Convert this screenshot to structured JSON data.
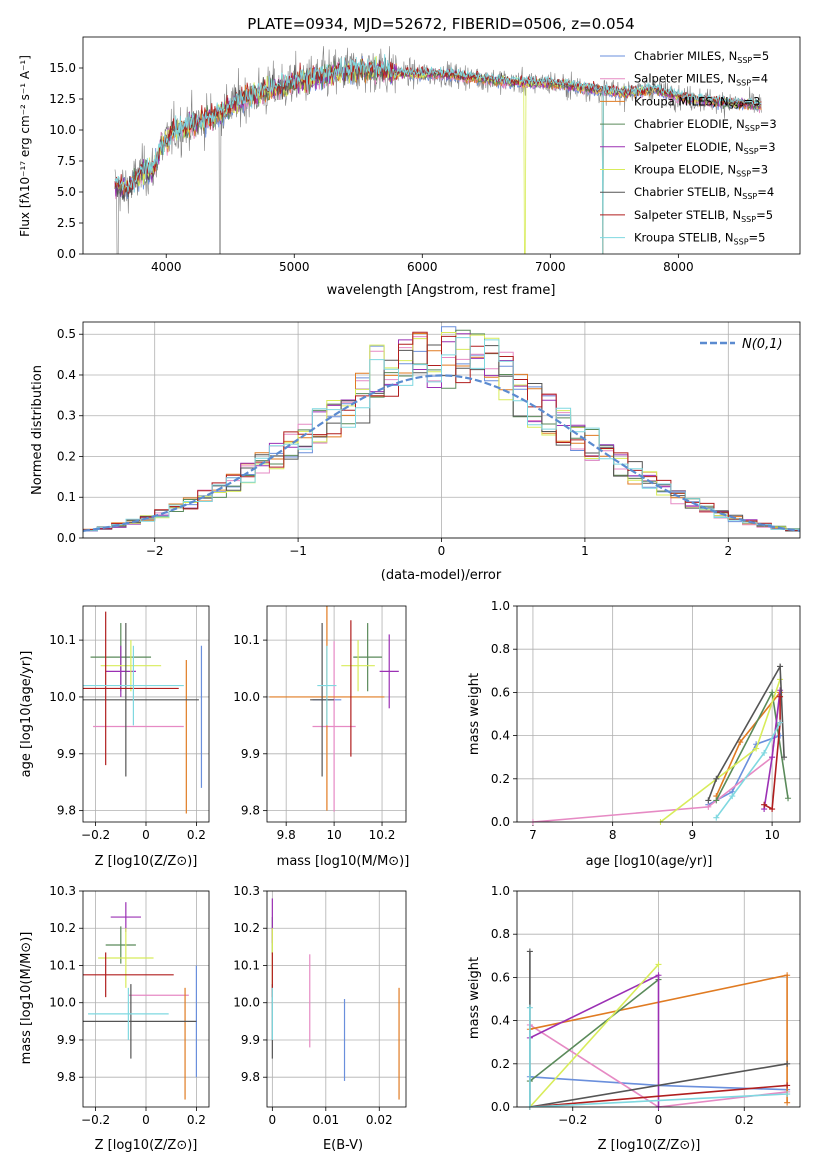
{
  "colors": {
    "Chabrier MILES": "#6a8fdc",
    "Salpeter MILES": "#e68ac4",
    "Kroupa MILES": "#e07b22",
    "Chabrier ELODIE": "#5a8a5a",
    "Salpeter ELODIE": "#9b30b4",
    "Kroupa ELODIE": "#d8ec5a",
    "Chabrier STELIB": "#555555",
    "Salpeter STELIB": "#b01e1e",
    "Kroupa STELIB": "#7fd8e0"
  },
  "chart_data": [
    {
      "id": "spectrum",
      "type": "line",
      "title": "PLATE=0934, MJD=52672, FIBERID=0506, z=0.054",
      "xlabel": "wavelength [Angstrom, rest frame]",
      "ylabel": "Flux [fλ10⁻¹⁷ erg cm⁻² s⁻¹ A⁻¹]",
      "xlim": [
        3350,
        8950
      ],
      "ylim": [
        0,
        17.5
      ],
      "xticks": [
        4000,
        5000,
        6000,
        7000,
        8000
      ],
      "yticks": [
        0.0,
        2.5,
        5.0,
        7.5,
        10.0,
        12.5,
        15.0
      ],
      "data_color": "#808080",
      "data_x_range": [
        3600,
        8650
      ],
      "continuum": [
        [
          3600,
          5.5
        ],
        [
          3700,
          5.2
        ],
        [
          3800,
          6.5
        ],
        [
          3900,
          6.8
        ],
        [
          3950,
          8.5
        ],
        [
          4050,
          9.8
        ],
        [
          4200,
          10.5
        ],
        [
          4400,
          11.2
        ],
        [
          4600,
          12.5
        ],
        [
          4800,
          13.2
        ],
        [
          5000,
          13.8
        ],
        [
          5200,
          14.3
        ],
        [
          5400,
          14.8
        ],
        [
          5600,
          14.9
        ],
        [
          5800,
          14.6
        ],
        [
          6000,
          14.5
        ],
        [
          6200,
          14.5
        ],
        [
          6400,
          14.2
        ],
        [
          6600,
          14.0
        ],
        [
          6800,
          13.8
        ],
        [
          7000,
          13.8
        ],
        [
          7200,
          13.5
        ],
        [
          7400,
          13.2
        ],
        [
          7600,
          13.0
        ],
        [
          7800,
          13.3
        ],
        [
          8000,
          12.7
        ],
        [
          8200,
          12.4
        ],
        [
          8400,
          12.2
        ],
        [
          8650,
          12.0
        ]
      ],
      "legend_loc": "upper right",
      "legend": [
        {
          "model": "Chabrier MILES",
          "label": "Chabrier MILES, N",
          "sub": "SSP",
          "n": "=5"
        },
        {
          "model": "Salpeter MILES",
          "label": "Salpeter MILES, N",
          "sub": "SSP",
          "n": "=4"
        },
        {
          "model": "Kroupa MILES",
          "label": "Kroupa MILES, N",
          "sub": "SSP",
          "n": "=3"
        },
        {
          "model": "Chabrier ELODIE",
          "label": "Chabrier ELODIE, N",
          "sub": "SSP",
          "n": "=3"
        },
        {
          "model": "Salpeter ELODIE",
          "label": "Salpeter ELODIE, N",
          "sub": "SSP",
          "n": "=3"
        },
        {
          "model": "Kroupa ELODIE",
          "label": "Kroupa ELODIE, N",
          "sub": "SSP",
          "n": "=3"
        },
        {
          "model": "Chabrier STELIB",
          "label": "Chabrier STELIB, N",
          "sub": "SSP",
          "n": "=4"
        },
        {
          "model": "Salpeter STELIB",
          "label": "Salpeter STELIB, N",
          "sub": "SSP",
          "n": "=5"
        },
        {
          "model": "Kroupa STELIB",
          "label": "Kroupa STELIB, N",
          "sub": "SSP",
          "n": "=5"
        }
      ]
    },
    {
      "id": "residuals",
      "type": "histogram",
      "xlabel": "(data-model)/error",
      "ylabel": "Normed distribution",
      "xlim": [
        -2.5,
        2.5
      ],
      "ylim": [
        0,
        0.53
      ],
      "xticks": [
        -2,
        -1,
        0,
        1,
        2
      ],
      "yticks": [
        0.0,
        0.1,
        0.2,
        0.3,
        0.4,
        0.5
      ],
      "grid": true,
      "gaussian_label": "N(0,1)",
      "gaussian_color": "#5b8bd0",
      "bin_width": 0.1
    },
    {
      "id": "age_vs_Z",
      "type": "errorbar",
      "xlabel": "Z [log10(Z/Z⊙)]",
      "ylabel": "age [log10(age/yr)]",
      "xlim": [
        -0.25,
        0.25
      ],
      "ylim": [
        9.78,
        10.16
      ],
      "xticks": [
        -0.2,
        0.0,
        0.2
      ],
      "yticks": [
        9.8,
        9.9,
        10.0,
        10.1
      ],
      "grid": true,
      "points": [
        {
          "model": "Chabrier MILES",
          "x": 0.22,
          "xerr": 0.0,
          "y": 9.965,
          "yerr": 0.125
        },
        {
          "model": "Salpeter MILES",
          "x": -0.03,
          "xerr": 0.18,
          "y": 9.948,
          "yerr": 0.0
        },
        {
          "model": "Kroupa MILES",
          "x": 0.16,
          "xerr": 0.0,
          "y": 9.93,
          "yerr": 0.135
        },
        {
          "model": "Chabrier ELODIE",
          "x": -0.1,
          "xerr": 0.12,
          "y": 10.07,
          "yerr": 0.06
        },
        {
          "model": "Salpeter ELODIE",
          "x": -0.1,
          "xerr": 0.06,
          "y": 10.045,
          "yerr": 0.045
        },
        {
          "model": "Kroupa ELODIE",
          "x": -0.06,
          "xerr": 0.12,
          "y": 10.055,
          "yerr": 0.045
        },
        {
          "model": "Chabrier STELIB",
          "x": -0.08,
          "xerr": 0.29,
          "y": 9.995,
          "yerr": 0.135
        },
        {
          "model": "Salpeter STELIB",
          "x": -0.16,
          "xerr": 0.29,
          "y": 10.015,
          "yerr": 0.135
        },
        {
          "model": "Kroupa STELIB",
          "x": -0.05,
          "xerr": 0.2,
          "y": 10.02,
          "yerr": 0.07
        }
      ]
    },
    {
      "id": "age_vs_mass",
      "type": "errorbar",
      "xlabel": "mass [log10(M/M⊙)]",
      "xlim": [
        9.72,
        10.3
      ],
      "ylim": [
        9.78,
        10.16
      ],
      "xticks": [
        9.8,
        10.0,
        10.2
      ],
      "yticks": [
        9.8,
        9.9,
        10.0,
        10.1
      ],
      "grid": true,
      "points": [
        {
          "model": "Chabrier MILES",
          "x": 9.97,
          "xerr": 0.06,
          "y": 9.995,
          "yerr": 0.0
        },
        {
          "model": "Salpeter MILES",
          "x": 10.0,
          "xerr": 0.09,
          "y": 9.948,
          "yerr": 0.15
        },
        {
          "model": "Kroupa MILES",
          "x": 9.97,
          "xerr": 0.24,
          "y": 10.0,
          "yerr": 0.2
        },
        {
          "model": "Chabrier ELODIE",
          "x": 10.14,
          "xerr": 0.06,
          "y": 10.07,
          "yerr": 0.06
        },
        {
          "model": "Salpeter ELODIE",
          "x": 10.23,
          "xerr": 0.04,
          "y": 10.045,
          "yerr": 0.065
        },
        {
          "model": "Kroupa ELODIE",
          "x": 10.1,
          "xerr": 0.07,
          "y": 10.055,
          "yerr": 0.045
        },
        {
          "model": "Chabrier STELIB",
          "x": 9.95,
          "xerr": 0.05,
          "y": 9.995,
          "yerr": 0.135
        },
        {
          "model": "Salpeter STELIB",
          "x": 10.07,
          "xerr": 0.0,
          "y": 10.015,
          "yerr": 0.12
        },
        {
          "model": "Kroupa STELIB",
          "x": 9.97,
          "xerr": 0.04,
          "y": 10.02,
          "yerr": 0.07
        }
      ]
    },
    {
      "id": "weight_vs_age",
      "type": "line",
      "xlabel": "age  [log10(age/yr)]",
      "ylabel": "mass weight",
      "xlim": [
        6.8,
        10.35
      ],
      "ylim": [
        0,
        1.0
      ],
      "xticks": [
        7,
        8,
        9,
        10
      ],
      "yticks": [
        0.0,
        0.2,
        0.4,
        0.6,
        0.8,
        1.0
      ],
      "grid": true,
      "series": [
        {
          "model": "Chabrier MILES",
          "x": [
            9.2,
            9.5,
            9.8,
            10.1
          ],
          "y": [
            0.08,
            0.14,
            0.36,
            0.4
          ]
        },
        {
          "model": "Salpeter MILES",
          "x": [
            7.0,
            9.2,
            10.0,
            10.1
          ],
          "y": [
            0.0,
            0.07,
            0.3,
            0.6
          ]
        },
        {
          "model": "Kroupa MILES",
          "x": [
            9.3,
            9.6,
            10.1
          ],
          "y": [
            0.12,
            0.37,
            0.6
          ]
        },
        {
          "model": "Chabrier ELODIE",
          "x": [
            9.3,
            10.0,
            10.2
          ],
          "y": [
            0.1,
            0.6,
            0.11
          ]
        },
        {
          "model": "Salpeter ELODIE",
          "x": [
            9.9,
            10.0,
            10.1
          ],
          "y": [
            0.06,
            0.3,
            0.61
          ]
        },
        {
          "model": "Kroupa ELODIE",
          "x": [
            8.6,
            9.8,
            10.1
          ],
          "y": [
            0.0,
            0.34,
            0.66
          ]
        },
        {
          "model": "Chabrier STELIB",
          "x": [
            9.2,
            9.3,
            10.1,
            10.15
          ],
          "y": [
            0.1,
            0.2,
            0.72,
            0.3
          ]
        },
        {
          "model": "Salpeter STELIB",
          "x": [
            9.9,
            10.0,
            10.1,
            10.1
          ],
          "y": [
            0.08,
            0.06,
            0.46,
            0.58
          ]
        },
        {
          "model": "Kroupa STELIB",
          "x": [
            9.3,
            9.5,
            9.9,
            10.1
          ],
          "y": [
            0.02,
            0.12,
            0.32,
            0.46
          ]
        }
      ]
    },
    {
      "id": "mass_vs_Z",
      "type": "errorbar",
      "xlabel": "Z [log10(Z/Z⊙)]",
      "ylabel": "mass [log10(M/M⊙)]",
      "xlim": [
        -0.25,
        0.25
      ],
      "ylim": [
        9.72,
        10.3
      ],
      "xticks": [
        -0.2,
        0.0,
        0.2
      ],
      "yticks": [
        9.8,
        9.9,
        10.0,
        10.1,
        10.2,
        10.3
      ],
      "grid": true,
      "points": [
        {
          "model": "Chabrier MILES",
          "x": 0.2,
          "xerr": 0.0,
          "y": 9.95,
          "yerr": 0.15
        },
        {
          "model": "Salpeter MILES",
          "x": 0.05,
          "xerr": 0.12,
          "y": 10.02,
          "yerr": 0.0
        },
        {
          "model": "Kroupa MILES",
          "x": 0.155,
          "xerr": 0.0,
          "y": 9.89,
          "yerr": 0.15
        },
        {
          "model": "Chabrier ELODIE",
          "x": -0.1,
          "xerr": 0.06,
          "y": 10.155,
          "yerr": 0.05
        },
        {
          "model": "Salpeter ELODIE",
          "x": -0.08,
          "xerr": 0.06,
          "y": 10.23,
          "yerr": 0.04
        },
        {
          "model": "Kroupa ELODIE",
          "x": -0.08,
          "xerr": 0.11,
          "y": 10.12,
          "yerr": 0.08
        },
        {
          "model": "Chabrier STELIB",
          "x": -0.06,
          "xerr": 0.26,
          "y": 9.95,
          "yerr": 0.1
        },
        {
          "model": "Salpeter STELIB",
          "x": -0.16,
          "xerr": 0.27,
          "y": 10.075,
          "yerr": 0.06
        },
        {
          "model": "Kroupa STELIB",
          "x": -0.07,
          "xerr": 0.16,
          "y": 9.97,
          "yerr": 0.07
        }
      ]
    },
    {
      "id": "mass_vs_ebv",
      "type": "errorbar",
      "xlabel": "E(B-V)",
      "xlim": [
        -0.001,
        0.025
      ],
      "ylim": [
        9.72,
        10.3
      ],
      "xticks": [
        0.0,
        0.01,
        0.02
      ],
      "yticks": [
        9.8,
        9.9,
        10.0,
        10.1,
        10.2,
        10.3
      ],
      "grid": true,
      "points": [
        {
          "model": "Chabrier MILES",
          "x": 0.0135,
          "xerr": 0.0,
          "y": 9.9,
          "yerr": 0.11
        },
        {
          "model": "Salpeter MILES",
          "x": 0.007,
          "xerr": 0.0,
          "y": 10.005,
          "yerr": 0.125
        },
        {
          "model": "Kroupa MILES",
          "x": 0.0237,
          "xerr": 0.0,
          "y": 9.89,
          "yerr": 0.15
        },
        {
          "model": "Chabrier ELODIE",
          "x": 0.0,
          "xerr": 0.0,
          "y": 10.18,
          "yerr": 0.05
        },
        {
          "model": "Salpeter ELODIE",
          "x": 0.0,
          "xerr": 0.0,
          "y": 10.22,
          "yerr": 0.06
        },
        {
          "model": "Kroupa ELODIE",
          "x": 0.0,
          "xerr": 0.0,
          "y": 10.12,
          "yerr": 0.08
        },
        {
          "model": "Chabrier STELIB",
          "x": 0.0,
          "xerr": 0.0,
          "y": 9.95,
          "yerr": 0.1
        },
        {
          "model": "Salpeter STELIB",
          "x": 0.0,
          "xerr": 0.0,
          "y": 10.075,
          "yerr": 0.06
        },
        {
          "model": "Kroupa STELIB",
          "x": 0.0,
          "xerr": 0.0,
          "y": 9.97,
          "yerr": 0.07
        }
      ]
    },
    {
      "id": "weight_vs_Z",
      "type": "line",
      "xlabel": "Z [log10(Z/Z⊙)]",
      "ylabel": "mass weight",
      "xlim": [
        -0.33,
        0.33
      ],
      "ylim": [
        0,
        1.0
      ],
      "xticks": [
        -0.2,
        0.0,
        0.2
      ],
      "yticks": [
        0.0,
        0.2,
        0.4,
        0.6,
        0.8,
        1.0
      ],
      "grid": true,
      "series": [
        {
          "model": "Chabrier MILES",
          "x": [
            -0.3,
            0.0,
            0.3
          ],
          "y": [
            0.14,
            0.1,
            0.08
          ]
        },
        {
          "model": "Salpeter MILES",
          "x": [
            -0.3,
            0.0,
            0.3
          ],
          "y": [
            0.38,
            0.0,
            0.07
          ]
        },
        {
          "model": "Kroupa MILES",
          "x": [
            -0.3,
            0.3,
            0.3
          ],
          "y": [
            0.36,
            0.61,
            0.02
          ]
        },
        {
          "model": "Chabrier ELODIE",
          "x": [
            -0.3,
            0.0
          ],
          "y": [
            0.12,
            0.59
          ]
        },
        {
          "model": "Salpeter ELODIE",
          "x": [
            -0.3,
            0.0,
            0.0
          ],
          "y": [
            0.32,
            0.61,
            0.0
          ]
        },
        {
          "model": "Kroupa ELODIE",
          "x": [
            -0.3,
            0.0
          ],
          "y": [
            0.0,
            0.66
          ]
        },
        {
          "model": "Chabrier STELIB",
          "x": [
            -0.3,
            -0.3,
            0.3
          ],
          "y": [
            0.72,
            0.0,
            0.2
          ]
        },
        {
          "model": "Salpeter STELIB",
          "x": [
            -0.3,
            0.3
          ],
          "y": [
            0.0,
            0.1
          ]
        },
        {
          "model": "Kroupa STELIB",
          "x": [
            -0.3,
            -0.3,
            0.3
          ],
          "y": [
            0.46,
            0.0,
            0.06
          ]
        }
      ]
    }
  ]
}
